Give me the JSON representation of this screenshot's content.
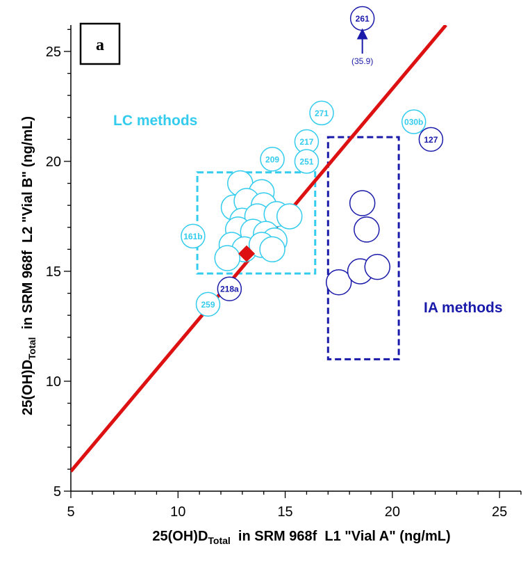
{
  "chart_data": {
    "type": "scatter",
    "panel_label": "a",
    "xlabel": {
      "main": "25(OH)D",
      "sub": "Total",
      "rest": "  in SRM 968f  L1 \"Vial A\" (ng/mL)"
    },
    "ylabel": {
      "main": "25(OH)D",
      "sub": "Total",
      "rest": "  in SRM 968f  L2 \"Vial B\" (ng/mL)"
    },
    "xlim": [
      5,
      26
    ],
    "ylim": [
      5,
      26.2
    ],
    "xticks": [
      5,
      10,
      15,
      20,
      25
    ],
    "yticks": [
      5,
      10,
      15,
      20,
      25
    ],
    "grid": false,
    "colors": {
      "lc": "#33ccee",
      "ia": "#1a1aaa",
      "line": "#dd1111",
      "diamond": "#dd1111"
    },
    "regression_line": {
      "x": [
        5,
        22.5
      ],
      "y": [
        5.9,
        26.2
      ]
    },
    "target_point": {
      "x": 13.2,
      "y": 15.8
    },
    "lc_label": "LC methods",
    "ia_label": "IA methods",
    "lc_box": {
      "x": [
        10.9,
        16.4
      ],
      "y": [
        14.9,
        19.5
      ]
    },
    "ia_box": {
      "x": [
        17.0,
        20.3
      ],
      "y": [
        11.0,
        21.1
      ]
    },
    "lc_points": [
      {
        "x": 12.9,
        "y": 19.0
      },
      {
        "x": 13.9,
        "y": 18.6
      },
      {
        "x": 12.6,
        "y": 17.9
      },
      {
        "x": 13.2,
        "y": 18.2
      },
      {
        "x": 14.0,
        "y": 18.0
      },
      {
        "x": 13.0,
        "y": 17.3
      },
      {
        "x": 13.7,
        "y": 17.5
      },
      {
        "x": 14.6,
        "y": 17.6
      },
      {
        "x": 15.2,
        "y": 17.5
      },
      {
        "x": 12.8,
        "y": 16.9
      },
      {
        "x": 13.5,
        "y": 16.8
      },
      {
        "x": 14.1,
        "y": 16.7
      },
      {
        "x": 14.5,
        "y": 16.4
      },
      {
        "x": 12.5,
        "y": 16.2
      },
      {
        "x": 13.1,
        "y": 16.0
      },
      {
        "x": 13.9,
        "y": 16.2
      },
      {
        "x": 14.4,
        "y": 16.0
      },
      {
        "x": 12.3,
        "y": 15.6
      }
    ],
    "lc_labeled_points": [
      {
        "label": "161b",
        "x": 10.7,
        "y": 16.6
      },
      {
        "label": "209",
        "x": 14.4,
        "y": 20.1
      },
      {
        "label": "217",
        "x": 16.0,
        "y": 20.9
      },
      {
        "label": "251",
        "x": 16.0,
        "y": 20.0
      },
      {
        "label": "271",
        "x": 16.7,
        "y": 22.2
      },
      {
        "label": "030b",
        "x": 21.0,
        "y": 21.8
      },
      {
        "label": "259",
        "x": 11.4,
        "y": 13.5
      }
    ],
    "ia_points": [
      {
        "x": 18.6,
        "y": 18.1
      },
      {
        "x": 18.8,
        "y": 16.9
      },
      {
        "x": 17.5,
        "y": 14.5
      },
      {
        "x": 18.5,
        "y": 15.0
      },
      {
        "x": 19.3,
        "y": 15.2
      }
    ],
    "ia_labeled_points": [
      {
        "label": "218a",
        "x": 12.4,
        "y": 14.2
      },
      {
        "label": "127",
        "x": 21.8,
        "y": 21.0
      }
    ],
    "offscale_point": {
      "label": "261",
      "x": 18.6,
      "y": 35.9,
      "display_y": 26.5,
      "value_label": "(35.9)",
      "arrow_from_y": 24.9,
      "arrow_to_y": 25.8
    }
  }
}
